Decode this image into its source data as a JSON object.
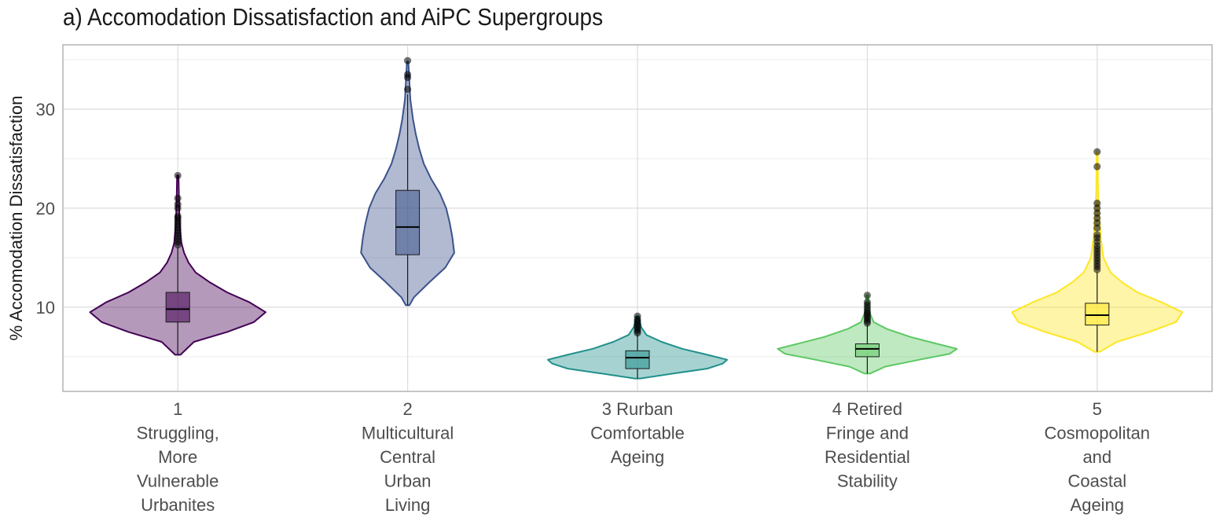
{
  "title": "a) Accomodation Dissatisfaction and AiPC Supergroups",
  "chart_data": {
    "type": "violin",
    "title": "a) Accomodation Dissatisfaction and AiPC Supergroups",
    "xlabel": "",
    "ylabel": "% Accomodation Dissatisfaction",
    "ylim": [
      1.5,
      36.5
    ],
    "yticks": [
      "10",
      "20",
      "30"
    ],
    "ytick_values": [
      10,
      20,
      30
    ],
    "grid": true,
    "categories": [
      {
        "lines": [
          "1",
          "Struggling,",
          "More",
          "Vulnerable",
          "Urbanites"
        ],
        "color": "#440154",
        "min": 5.2,
        "q1": 8.5,
        "median": 9.8,
        "q3": 11.5,
        "whisker_high": 16.0,
        "width_profile": [
          [
            5.2,
            0.03
          ],
          [
            6.5,
            0.18
          ],
          [
            7.5,
            0.55
          ],
          [
            8.5,
            0.85
          ],
          [
            9.5,
            0.98
          ],
          [
            10.5,
            0.8
          ],
          [
            11.5,
            0.55
          ],
          [
            12.5,
            0.36
          ],
          [
            13.5,
            0.2
          ],
          [
            14.5,
            0.12
          ],
          [
            15.5,
            0.07
          ],
          [
            16.5,
            0.04
          ],
          [
            18,
            0.025
          ],
          [
            20,
            0.015
          ],
          [
            23.3,
            0.008
          ]
        ],
        "outliers": [
          16.3,
          16.6,
          16.9,
          17.2,
          17.5,
          17.8,
          18.1,
          18.4,
          18.7,
          19.0,
          19.2,
          20.0,
          20.4,
          21.0,
          23.3
        ]
      },
      {
        "lines": [
          "2",
          "Multicultural",
          "Central",
          "Urban",
          "Living"
        ],
        "color": "#3b528b",
        "min": 10.2,
        "q1": 15.3,
        "median": 18.1,
        "q3": 21.8,
        "whisker_high": 31.5,
        "width_profile": [
          [
            10.2,
            0.02
          ],
          [
            11,
            0.07
          ],
          [
            12.5,
            0.24
          ],
          [
            14,
            0.42
          ],
          [
            15.5,
            0.52
          ],
          [
            17,
            0.5
          ],
          [
            18.5,
            0.47
          ],
          [
            20,
            0.43
          ],
          [
            21.5,
            0.36
          ],
          [
            23,
            0.26
          ],
          [
            24.5,
            0.18
          ],
          [
            26,
            0.13
          ],
          [
            27.5,
            0.09
          ],
          [
            29,
            0.06
          ],
          [
            31,
            0.03
          ],
          [
            34.8,
            0.008
          ]
        ],
        "outliers": [
          32.0,
          33.2,
          33.5,
          34.9
        ]
      },
      {
        "lines": [
          "3 Rurban",
          "Comfortable",
          "Ageing"
        ],
        "color": "#21908c",
        "min": 2.8,
        "q1": 3.8,
        "median": 4.9,
        "q3": 5.6,
        "whisker_high": 7.2,
        "width_profile": [
          [
            2.8,
            0.03
          ],
          [
            3.3,
            0.4
          ],
          [
            3.8,
            0.78
          ],
          [
            4.3,
            0.95
          ],
          [
            4.7,
            1.0
          ],
          [
            5.2,
            0.78
          ],
          [
            5.8,
            0.5
          ],
          [
            6.5,
            0.27
          ],
          [
            7.2,
            0.1
          ],
          [
            8,
            0.04
          ],
          [
            9.1,
            0.01
          ]
        ],
        "outliers": [
          7.4,
          7.6,
          7.8,
          8.0,
          8.2,
          8.4,
          8.6,
          8.8,
          9.1
        ]
      },
      {
        "lines": [
          "4 Retired",
          "Fringe and",
          "Residential",
          "Stability"
        ],
        "color": "#5dc863",
        "min": 3.3,
        "q1": 5.0,
        "median": 5.8,
        "q3": 6.3,
        "whisker_high": 8.2,
        "width_profile": [
          [
            3.3,
            0.03
          ],
          [
            4,
            0.2
          ],
          [
            4.7,
            0.58
          ],
          [
            5.3,
            0.92
          ],
          [
            5.8,
            1.0
          ],
          [
            6.3,
            0.78
          ],
          [
            7,
            0.48
          ],
          [
            7.8,
            0.22
          ],
          [
            8.5,
            0.07
          ],
          [
            9.5,
            0.025
          ],
          [
            11.2,
            0.01
          ]
        ],
        "outliers": [
          8.4,
          8.6,
          8.8,
          9.0,
          9.2,
          9.4,
          9.6,
          9.9,
          10.2,
          10.5,
          11.2
        ]
      },
      {
        "lines": [
          "5",
          "Cosmopolitan",
          "and",
          "Coastal",
          "Ageing"
        ],
        "color": "#fde725",
        "min": 5.5,
        "q1": 8.2,
        "median": 9.2,
        "q3": 10.4,
        "whisker_high": 13.5,
        "width_profile": [
          [
            5.5,
            0.03
          ],
          [
            6.5,
            0.22
          ],
          [
            7.5,
            0.58
          ],
          [
            8.5,
            0.88
          ],
          [
            9.5,
            0.95
          ],
          [
            10.5,
            0.72
          ],
          [
            11.5,
            0.45
          ],
          [
            12.5,
            0.28
          ],
          [
            13.5,
            0.15
          ],
          [
            15,
            0.07
          ],
          [
            17,
            0.04
          ],
          [
            19.5,
            0.02
          ],
          [
            22,
            0.01
          ],
          [
            25.7,
            0.006
          ]
        ],
        "outliers": [
          13.8,
          14.1,
          14.4,
          14.7,
          15.0,
          15.3,
          15.6,
          15.9,
          16.2,
          16.6,
          17.0,
          17.3,
          18.0,
          18.5,
          19.0,
          19.5,
          20.0,
          20.5,
          24.2,
          25.7
        ]
      }
    ]
  }
}
